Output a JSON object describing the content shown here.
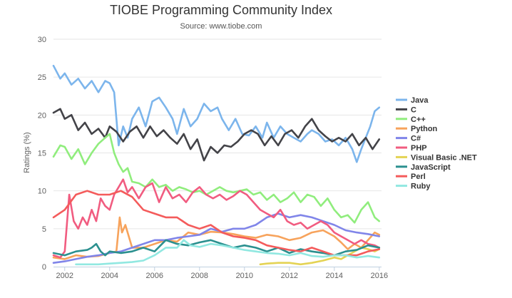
{
  "chart_data": {
    "type": "line",
    "title": "TIOBE Programming Community Index",
    "subtitle": "Source: www.tiobe.com",
    "xlabel": "",
    "ylabel": "Ratings (%)",
    "xlim": [
      2001.5,
      2016.1
    ],
    "ylim": [
      0,
      30
    ],
    "x_ticks": [
      2002,
      2004,
      2006,
      2008,
      2010,
      2012,
      2014,
      2016
    ],
    "y_ticks": [
      0,
      5,
      10,
      15,
      20,
      25,
      30
    ],
    "grid": "horizontal",
    "legend_position": "right",
    "series": [
      {
        "name": "Java",
        "color": "#7cb5ec",
        "x": [
          2001.5,
          2001.8,
          2002.0,
          2002.3,
          2002.6,
          2002.9,
          2003.2,
          2003.5,
          2003.8,
          2004.0,
          2004.2,
          2004.4,
          2004.6,
          2004.8,
          2005.0,
          2005.3,
          2005.6,
          2005.9,
          2006.2,
          2006.5,
          2006.8,
          2007.0,
          2007.3,
          2007.6,
          2007.9,
          2008.2,
          2008.5,
          2008.8,
          2009.0,
          2009.3,
          2009.6,
          2009.9,
          2010.2,
          2010.5,
          2010.8,
          2011.0,
          2011.3,
          2011.6,
          2011.9,
          2012.2,
          2012.5,
          2012.8,
          2013.0,
          2013.3,
          2013.6,
          2013.9,
          2014.2,
          2014.5,
          2014.8,
          2015.0,
          2015.2,
          2015.4,
          2015.6,
          2015.8,
          2016.0
        ],
        "y": [
          26.5,
          24.8,
          25.5,
          24.0,
          24.8,
          23.5,
          24.5,
          23.0,
          24.5,
          24.2,
          23.0,
          16.0,
          18.5,
          17.0,
          19.5,
          21.0,
          18.5,
          21.8,
          22.3,
          21.0,
          19.5,
          17.5,
          20.8,
          18.5,
          19.5,
          21.5,
          20.5,
          21.0,
          19.5,
          18.0,
          19.5,
          17.5,
          17.3,
          18.5,
          17.0,
          19.0,
          17.0,
          18.5,
          17.5,
          17.0,
          16.5,
          17.5,
          18.0,
          17.5,
          16.5,
          16.8,
          16.0,
          17.0,
          15.5,
          13.8,
          15.5,
          17.0,
          18.5,
          20.5,
          21.0
        ]
      },
      {
        "name": "C",
        "color": "#434348",
        "x": [
          2001.5,
          2001.8,
          2002.0,
          2002.3,
          2002.6,
          2002.9,
          2003.2,
          2003.5,
          2003.8,
          2004.0,
          2004.3,
          2004.6,
          2004.9,
          2005.2,
          2005.5,
          2005.8,
          2006.1,
          2006.4,
          2006.7,
          2007.0,
          2007.3,
          2007.6,
          2007.9,
          2008.2,
          2008.5,
          2008.8,
          2009.1,
          2009.4,
          2009.7,
          2010.0,
          2010.3,
          2010.6,
          2010.9,
          2011.2,
          2011.5,
          2011.8,
          2012.1,
          2012.4,
          2012.7,
          2013.0,
          2013.3,
          2013.6,
          2013.9,
          2014.2,
          2014.5,
          2014.8,
          2015.1,
          2015.4,
          2015.7,
          2016.0
        ],
        "y": [
          20.3,
          20.8,
          19.5,
          20.0,
          18.0,
          19.0,
          17.5,
          18.2,
          17.0,
          18.5,
          17.8,
          16.5,
          17.8,
          18.5,
          17.0,
          18.5,
          17.2,
          18.0,
          17.0,
          16.2,
          17.5,
          15.5,
          16.8,
          14.0,
          15.8,
          15.0,
          16.0,
          15.8,
          16.5,
          17.5,
          18.0,
          17.5,
          16.0,
          17.2,
          16.0,
          17.5,
          18.0,
          17.0,
          18.5,
          19.5,
          18.0,
          17.2,
          16.5,
          17.0,
          16.5,
          17.5,
          16.0,
          17.0,
          15.5,
          16.8
        ]
      },
      {
        "name": "C++",
        "color": "#90ed7d",
        "x": [
          2001.5,
          2001.8,
          2002.0,
          2002.3,
          2002.6,
          2002.9,
          2003.2,
          2003.5,
          2003.8,
          2004.0,
          2004.2,
          2004.4,
          2004.6,
          2004.8,
          2005.0,
          2005.3,
          2005.6,
          2005.9,
          2006.2,
          2006.5,
          2006.8,
          2007.1,
          2007.4,
          2007.7,
          2008.0,
          2008.3,
          2008.6,
          2008.9,
          2009.2,
          2009.5,
          2009.8,
          2010.1,
          2010.4,
          2010.7,
          2011.0,
          2011.3,
          2011.6,
          2011.9,
          2012.2,
          2012.5,
          2012.8,
          2013.1,
          2013.4,
          2013.7,
          2014.0,
          2014.3,
          2014.6,
          2014.9,
          2015.2,
          2015.5,
          2015.8,
          2016.0
        ],
        "y": [
          14.5,
          16.0,
          15.8,
          14.2,
          15.5,
          13.5,
          15.0,
          16.2,
          17.0,
          17.5,
          15.0,
          13.5,
          12.5,
          13.0,
          11.2,
          11.0,
          10.5,
          11.5,
          10.5,
          10.8,
          10.0,
          10.5,
          10.2,
          9.8,
          10.0,
          9.5,
          10.0,
          10.5,
          10.0,
          9.8,
          10.0,
          10.2,
          9.5,
          9.8,
          8.8,
          9.5,
          8.5,
          9.0,
          9.8,
          8.5,
          9.5,
          9.2,
          8.0,
          9.0,
          7.5,
          6.5,
          6.8,
          5.8,
          7.5,
          8.5,
          6.5,
          6.0
        ]
      },
      {
        "name": "Python",
        "color": "#f7a35c",
        "x": [
          2001.5,
          2002.0,
          2002.5,
          2003.0,
          2003.5,
          2004.0,
          2004.3,
          2004.45,
          2004.55,
          2004.7,
          2005.0,
          2005.5,
          2006.0,
          2006.5,
          2007.0,
          2007.5,
          2008.0,
          2008.5,
          2009.0,
          2009.5,
          2010.0,
          2010.5,
          2011.0,
          2011.5,
          2012.0,
          2012.5,
          2013.0,
          2013.5,
          2014.0,
          2014.3,
          2014.6,
          2014.9,
          2015.2,
          2015.5,
          2015.8,
          2016.0
        ],
        "y": [
          1.2,
          1.0,
          1.5,
          1.3,
          1.4,
          1.8,
          2.0,
          6.5,
          4.5,
          5.5,
          2.5,
          2.5,
          3.0,
          3.5,
          3.3,
          4.5,
          4.2,
          4.6,
          4.5,
          4.3,
          4.0,
          3.8,
          4.2,
          4.0,
          3.5,
          3.8,
          4.5,
          4.8,
          4.0,
          3.2,
          2.3,
          3.0,
          2.5,
          3.5,
          4.5,
          4.2
        ]
      },
      {
        "name": "C#",
        "color": "#8085e9",
        "x": [
          2001.5,
          2002.0,
          2002.5,
          2003.0,
          2003.5,
          2004.0,
          2004.5,
          2005.0,
          2005.5,
          2006.0,
          2006.5,
          2007.0,
          2007.5,
          2008.0,
          2008.5,
          2009.0,
          2009.5,
          2010.0,
          2010.5,
          2011.0,
          2011.5,
          2012.0,
          2012.5,
          2013.0,
          2013.5,
          2014.0,
          2014.5,
          2015.0,
          2015.5,
          2016.0
        ],
        "y": [
          0.5,
          0.7,
          1.0,
          1.3,
          1.5,
          1.8,
          2.0,
          2.5,
          3.0,
          3.5,
          3.5,
          3.8,
          4.0,
          4.2,
          5.0,
          4.6,
          5.0,
          5.0,
          5.5,
          6.5,
          7.0,
          6.5,
          6.8,
          6.5,
          6.0,
          5.5,
          4.8,
          4.5,
          4.3,
          4.0
        ]
      },
      {
        "name": "PHP",
        "color": "#f15c80",
        "x": [
          2001.5,
          2001.8,
          2002.0,
          2002.2,
          2002.4,
          2002.6,
          2002.8,
          2003.0,
          2003.2,
          2003.4,
          2003.6,
          2003.8,
          2004.0,
          2004.2,
          2004.4,
          2004.6,
          2004.8,
          2005.0,
          2005.3,
          2005.6,
          2005.9,
          2006.2,
          2006.5,
          2006.8,
          2007.1,
          2007.4,
          2007.7,
          2008.0,
          2008.3,
          2008.6,
          2008.9,
          2009.2,
          2009.5,
          2009.8,
          2010.1,
          2010.4,
          2010.7,
          2011.0,
          2011.3,
          2011.6,
          2011.9,
          2012.2,
          2012.5,
          2012.8,
          2013.1,
          2013.4,
          2013.7,
          2014.0,
          2014.3,
          2014.6,
          2014.9,
          2015.2,
          2015.5,
          2015.8,
          2016.0
        ],
        "y": [
          1.5,
          1.2,
          2.0,
          9.5,
          6.0,
          5.0,
          6.5,
          5.5,
          7.5,
          6.0,
          9.0,
          8.0,
          7.5,
          9.5,
          10.5,
          11.5,
          9.8,
          10.5,
          9.0,
          10.5,
          11.0,
          8.5,
          10.5,
          9.0,
          9.5,
          8.5,
          9.8,
          10.5,
          9.5,
          9.0,
          9.5,
          8.8,
          9.3,
          10.0,
          9.5,
          8.5,
          7.5,
          7.0,
          6.5,
          7.5,
          6.0,
          5.5,
          5.8,
          5.0,
          5.5,
          6.0,
          5.5,
          4.5,
          4.0,
          3.5,
          3.0,
          3.5,
          3.0,
          2.8,
          2.5
        ]
      },
      {
        "name": "Visual Basic .NET",
        "color": "#e4d354",
        "x": [
          2010.7,
          2011.0,
          2011.5,
          2012.0,
          2012.5,
          2013.0,
          2013.5,
          2014.0,
          2014.3,
          2014.6,
          2014.9,
          2015.2,
          2015.5,
          2015.8,
          2016.0
        ],
        "y": [
          0.3,
          0.4,
          0.5,
          0.5,
          0.3,
          0.5,
          0.8,
          1.2,
          1.0,
          1.5,
          2.0,
          2.5,
          2.3,
          2.0,
          2.3
        ]
      },
      {
        "name": "JavaScript",
        "color": "#2b908f",
        "x": [
          2001.5,
          2002.0,
          2002.5,
          2003.0,
          2003.2,
          2003.4,
          2003.6,
          2003.8,
          2004.0,
          2004.5,
          2005.0,
          2005.5,
          2006.0,
          2006.5,
          2007.0,
          2007.5,
          2008.0,
          2008.5,
          2009.0,
          2009.5,
          2010.0,
          2010.5,
          2011.0,
          2011.5,
          2012.0,
          2012.5,
          2013.0,
          2013.5,
          2014.0,
          2014.5,
          2015.0,
          2015.5,
          2016.0
        ],
        "y": [
          1.8,
          1.5,
          2.0,
          2.2,
          2.5,
          3.0,
          2.0,
          1.5,
          2.0,
          1.8,
          2.0,
          2.5,
          2.0,
          3.5,
          3.0,
          2.8,
          3.2,
          3.5,
          3.0,
          2.5,
          2.8,
          2.5,
          2.0,
          2.5,
          1.8,
          2.3,
          2.0,
          1.8,
          1.5,
          2.0,
          2.2,
          2.8,
          2.5
        ]
      },
      {
        "name": "Perl",
        "color": "#f45b5b",
        "x": [
          2001.5,
          2002.0,
          2002.5,
          2003.0,
          2003.5,
          2004.0,
          2004.5,
          2005.0,
          2005.5,
          2006.0,
          2006.5,
          2007.0,
          2007.5,
          2008.0,
          2008.5,
          2009.0,
          2009.5,
          2010.0,
          2010.5,
          2011.0,
          2011.5,
          2012.0,
          2012.5,
          2013.0,
          2013.5,
          2014.0,
          2014.5,
          2015.0,
          2015.5,
          2016.0
        ],
        "y": [
          6.5,
          7.5,
          9.5,
          10.0,
          9.5,
          9.5,
          10.0,
          9.2,
          7.5,
          7.0,
          6.5,
          6.5,
          5.5,
          5.0,
          5.5,
          4.5,
          4.0,
          3.8,
          3.5,
          2.8,
          2.5,
          2.2,
          2.0,
          2.5,
          2.0,
          1.5,
          1.5,
          1.5,
          2.0,
          2.3
        ]
      },
      {
        "name": "Ruby",
        "color": "#91e8e1",
        "x": [
          2002.5,
          2003.0,
          2003.5,
          2004.0,
          2004.5,
          2005.0,
          2005.5,
          2006.0,
          2006.5,
          2007.0,
          2007.3,
          2007.6,
          2008.0,
          2008.5,
          2009.0,
          2009.5,
          2010.0,
          2010.5,
          2011.0,
          2011.5,
          2012.0,
          2012.5,
          2013.0,
          2013.5,
          2014.0,
          2014.5,
          2015.0,
          2015.5,
          2016.0
        ],
        "y": [
          0.3,
          0.3,
          0.3,
          0.4,
          0.5,
          0.6,
          0.8,
          1.5,
          2.5,
          2.5,
          3.5,
          2.8,
          2.6,
          3.0,
          2.8,
          2.5,
          2.2,
          2.0,
          1.8,
          1.7,
          1.5,
          1.8,
          1.4,
          1.3,
          1.5,
          1.5,
          1.2,
          1.4,
          1.2
        ]
      }
    ]
  }
}
